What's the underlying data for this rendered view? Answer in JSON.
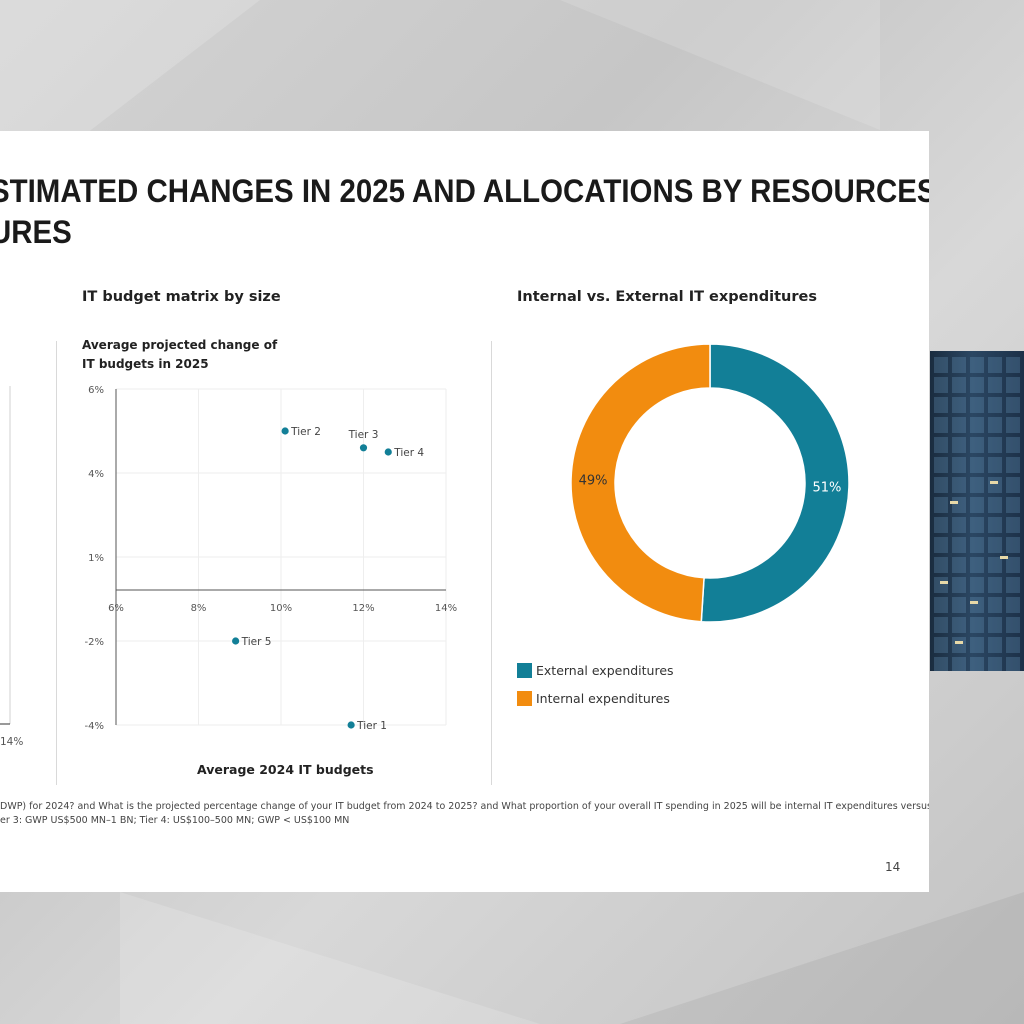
{
  "slide": {
    "title_line1": "STIMATED CHANGES IN 2025 AND ALLOCATIONS BY RESOURCES",
    "title_line2": "URES",
    "left_partial_tick": "14%",
    "footnote_line1": "DWP) for 2024? and What is the projected percentage change of your IT budget from 2024 to 2025? and What proportion of your overall IT spending in 2025 will be internal IT expenditures versus",
    "footnote_line2": "er 3: GWP US$500 MN–1 BN; Tier 4: US$100–500 MN; GWP < US$100 MN",
    "page_number": "14"
  },
  "scatter": {
    "heading": "IT budget matrix by size",
    "subtitle": "Average projected change of IT budgets in 2025",
    "xlabel": "Average 2024 IT budgets"
  },
  "donut": {
    "heading": "Internal vs. External IT expenditures"
  },
  "colors": {
    "external": "#127f97",
    "internal": "#f28c0f",
    "point": "#127f97"
  },
  "chart_data": [
    {
      "type": "scatter",
      "title": "IT budget matrix by size",
      "ylabel": "Average projected change of IT budgets in 2025",
      "xlabel": "Average 2024 IT budgets",
      "x_ticks": [
        "6%",
        "8%",
        "10%",
        "12%",
        "14%"
      ],
      "y_ticks": [
        "6%",
        "4%",
        "1%",
        "-2%",
        "-4%"
      ],
      "points": [
        {
          "label": "Tier 2",
          "x": 10.1,
          "y": 5.0
        },
        {
          "label": "Tier 3",
          "x": 12.0,
          "y": 4.6
        },
        {
          "label": "Tier 4",
          "x": 12.6,
          "y": 4.5
        },
        {
          "label": "Tier 5",
          "x": 8.9,
          "y": -2.0
        },
        {
          "label": "Tier 1",
          "x": 11.7,
          "y": -4.0
        }
      ]
    },
    {
      "type": "pie",
      "title": "Internal vs. External IT expenditures",
      "slices": [
        {
          "name": "External expenditures",
          "value": 51,
          "label": "51%"
        },
        {
          "name": "Internal expenditures",
          "value": 49,
          "label": "49%"
        }
      ]
    }
  ]
}
